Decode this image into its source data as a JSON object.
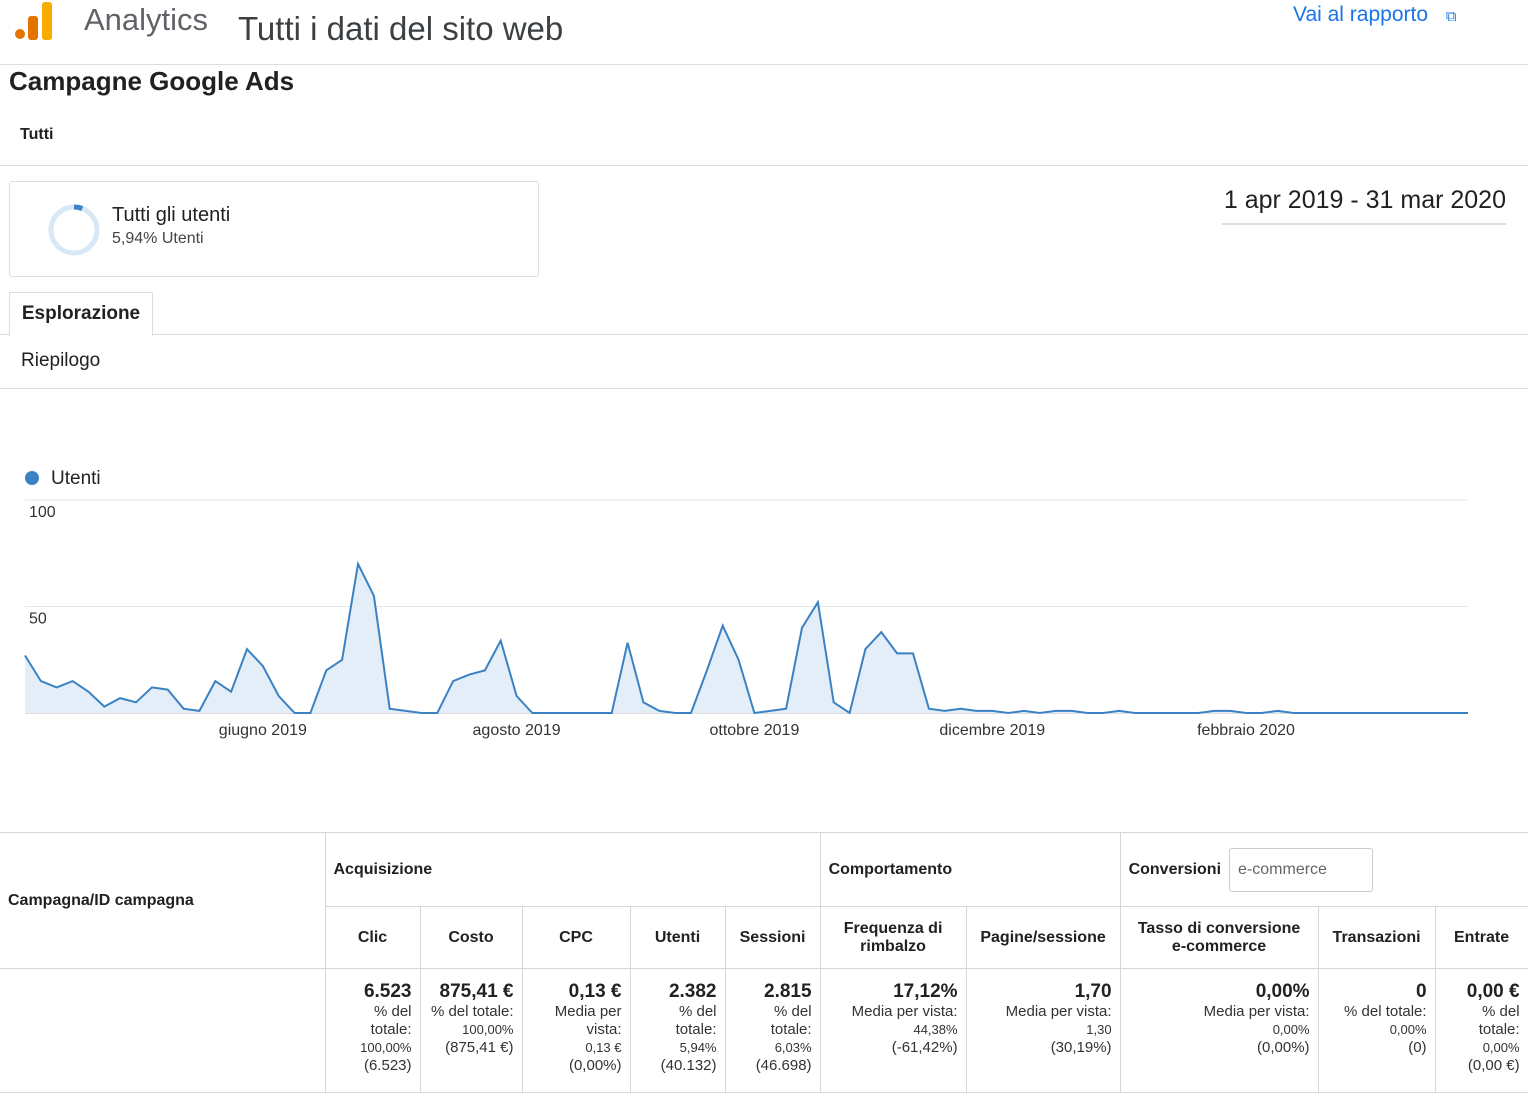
{
  "header": {
    "app": "Analytics",
    "view": "Tutti i dati del sito web",
    "link": "Vai al rapporto"
  },
  "report": {
    "title": "Campagne Google Ads",
    "filter": "Tutti",
    "segment": {
      "name": "Tutti gli utenti",
      "detail": "5,94% Utenti"
    },
    "date_range": "1 apr 2019 - 31 mar 2020",
    "tab": "Esplorazione",
    "subtab": "Riepilogo"
  },
  "chart_data": {
    "type": "line",
    "categories": [
      null,
      null,
      null,
      null,
      null,
      null,
      null,
      null,
      null,
      null,
      null,
      null,
      null,
      null,
      null,
      "giugno 2019",
      null,
      null,
      null,
      null,
      null,
      null,
      null,
      null,
      null,
      null,
      null,
      null,
      null,
      null,
      null,
      "agosto 2019",
      null,
      null,
      null,
      null,
      null,
      null,
      null,
      null,
      null,
      null,
      null,
      null,
      null,
      null,
      "ottobre 2019",
      null,
      null,
      null,
      null,
      null,
      null,
      null,
      null,
      null,
      null,
      null,
      null,
      null,
      null,
      "dicembre 2019",
      null,
      null,
      null,
      null,
      null,
      null,
      null,
      null,
      null,
      null,
      null,
      null,
      null,
      null,
      null,
      "febbraio 2020",
      null,
      null,
      null,
      null,
      null,
      null,
      null,
      null,
      null,
      null,
      null,
      null,
      null,
      null
    ],
    "series": [
      {
        "name": "Utenti",
        "color": "#3b82c4",
        "fill": "#e4eef8",
        "values": [
          27,
          15,
          12,
          15,
          10,
          3,
          7,
          5,
          12,
          11,
          2,
          1,
          15,
          10,
          30,
          22,
          8,
          0,
          0,
          20,
          25,
          70,
          55,
          2,
          1,
          0,
          0,
          15,
          18,
          20,
          34,
          8,
          0,
          0,
          0,
          0,
          0,
          0,
          33,
          5,
          1,
          0,
          0,
          20,
          41,
          25,
          0,
          1,
          2,
          40,
          52,
          5,
          0,
          30,
          38,
          28,
          28,
          2,
          1,
          2,
          1,
          1,
          0,
          1,
          0,
          1,
          1,
          0,
          0,
          1,
          0,
          0,
          0,
          0,
          0,
          1,
          1,
          0,
          0,
          1,
          0,
          0,
          0,
          0,
          0,
          0,
          0,
          0,
          0,
          0,
          0,
          0
        ]
      }
    ],
    "ylim": [
      0,
      100
    ],
    "yticks": [
      50,
      100
    ],
    "grid": true
  },
  "table": {
    "group_headers": [
      "Campagna/ID campagna",
      "Acquisizione",
      "Comportamento",
      "Conversioni"
    ],
    "conversion_select": "e-commerce",
    "columns": [
      "Clic",
      "Costo",
      "CPC",
      "Utenti",
      "Sessioni",
      "Frequenza di rimbalzo",
      "Pagine/sessione",
      "Tasso di conversione e-commerce",
      "Transazioni",
      "Entrate"
    ],
    "totals": [
      {
        "value": "6.523",
        "label": "% del totale:",
        "total": "100,00%",
        "base": "(6.523)"
      },
      {
        "value": "875,41 €",
        "label": "% del totale:",
        "total": "100,00%",
        "base": "(875,41 €)"
      },
      {
        "value": "0,13 €",
        "label": "Media per vista:",
        "total": "0,13 €",
        "base": "(0,00%)"
      },
      {
        "value": "2.382",
        "label": "% del totale:",
        "total": "5,94%",
        "base": "(40.132)"
      },
      {
        "value": "2.815",
        "label": "% del totale:",
        "total": "6,03%",
        "base": "(46.698)"
      },
      {
        "value": "17,12%",
        "label": "Media per vista:",
        "total": "44,38%",
        "base": "(-61,42%)"
      },
      {
        "value": "1,70",
        "label": "Media per vista:",
        "total": "1,30",
        "base": "(30,19%)"
      },
      {
        "value": "0,00%",
        "label": "Media per vista:",
        "total": "0,00%",
        "base": "(0,00%)"
      },
      {
        "value": "0",
        "label": "% del totale:",
        "total": "0,00%",
        "base": "(0)"
      },
      {
        "value": "0,00 €",
        "label": "% del totale:",
        "total": "0,00%",
        "base": "(0,00 €)"
      }
    ]
  }
}
